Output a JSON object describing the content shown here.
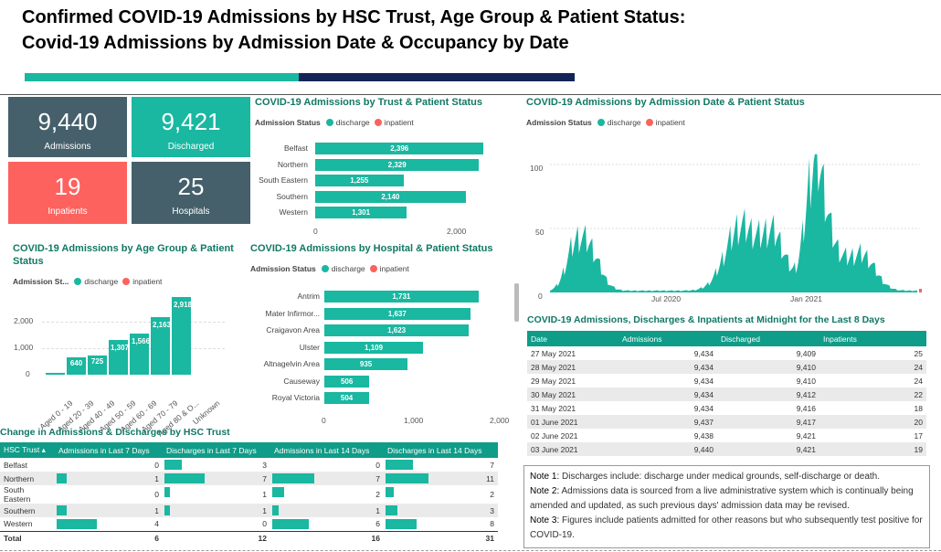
{
  "header": {
    "line1": "Confirmed COVID-19 Admissions by HSC Trust, Age Group & Patient Status:",
    "line2": "Covid-19 Admissions by Admission Date & Occupancy by Date"
  },
  "colors": {
    "teal": "#1ab7a1",
    "dark": "#45606b",
    "red": "#fd625e",
    "navy": "#152456",
    "heading": "#117865"
  },
  "kpis": [
    {
      "value": "9,440",
      "label": "Admissions"
    },
    {
      "value": "9,421",
      "label": "Discharged"
    },
    {
      "value": "19",
      "label": "Inpatients"
    },
    {
      "value": "25",
      "label": "Hospitals"
    }
  ],
  "legend": {
    "title": "Admission Status",
    "title_short": "Admission St...",
    "discharge": "discharge",
    "inpatient": "inpatient"
  },
  "trust_chart": {
    "title": "COVID-19 Admissions by Trust & Patient Status",
    "categories": [
      "Belfast",
      "Northern",
      "South Eastern",
      "Southern",
      "Western"
    ],
    "values": [
      2396,
      2329,
      1255,
      2140,
      1301
    ],
    "labels": [
      "2,396",
      "2,329",
      "1,255",
      "2,140",
      "1,301"
    ],
    "ticks": [
      "0",
      "2,000"
    ]
  },
  "date_chart": {
    "title": "COVID-19 Admissions by Admission Date & Patient Status",
    "y_ticks": [
      "100",
      "50",
      "0"
    ],
    "x_ticks": [
      "Jul 2020",
      "Jan 2021"
    ]
  },
  "age_chart": {
    "title": "COVID-19 Admissions by Age Group & Patient Status",
    "categories": [
      "Aged 0 - 19",
      "Aged 20 - 39",
      "Aged 40 - 49",
      "Aged 50 - 59",
      "Aged 60 - 69",
      "Aged 70 - 79",
      "Aged 80 & O...",
      "Unknown"
    ],
    "values": [
      62,
      640,
      725,
      1307,
      1566,
      2163,
      2918,
      0
    ],
    "labels": [
      "",
      "640",
      "725",
      "1,307",
      "1,566",
      "2,163",
      "2,918",
      ""
    ],
    "y_ticks": [
      "2,000",
      "1,000",
      "0"
    ]
  },
  "hospital_chart": {
    "title": "COVID-19 Admissions by Hospital & Patient Status",
    "categories": [
      "Antrim",
      "Mater Infirmor...",
      "Craigavon Area",
      "Ulster",
      "Altnagelvin Area",
      "Causeway",
      "Royal Victoria"
    ],
    "values": [
      1731,
      1637,
      1623,
      1109,
      935,
      506,
      504
    ],
    "labels": [
      "1,731",
      "1,637",
      "1,623",
      "1,109",
      "935",
      "506",
      "504"
    ],
    "ticks": [
      "0",
      "1,000",
      "2,000"
    ]
  },
  "occupancy": {
    "title": "COVID-19 Admissions, Discharges & Inpatients at Midnight for the Last 8 Days",
    "headers": [
      "Date",
      "Admissions",
      "Discharged",
      "Inpatients"
    ],
    "rows": [
      [
        "27 May 2021",
        "9,434",
        "9,409",
        "25"
      ],
      [
        "28 May 2021",
        "9,434",
        "9,410",
        "24"
      ],
      [
        "29 May 2021",
        "9,434",
        "9,410",
        "24"
      ],
      [
        "30 May 2021",
        "9,434",
        "9,412",
        "22"
      ],
      [
        "31 May 2021",
        "9,434",
        "9,416",
        "18"
      ],
      [
        "01 June 2021",
        "9,437",
        "9,417",
        "20"
      ],
      [
        "02 June 2021",
        "9,438",
        "9,421",
        "17"
      ],
      [
        "03 June 2021",
        "9,440",
        "9,421",
        "19"
      ]
    ]
  },
  "change_table": {
    "title": "Change in Admissions & Discharges by HSC Trust",
    "headers": [
      "HSC Trust",
      "Admissions in Last 7 Days",
      "Discharges in Last 7 Days",
      "Admissions in Last 14 Days",
      "Discharges in Last 14 Days"
    ],
    "rows": [
      [
        "Belfast",
        "0",
        "3",
        "0",
        "7"
      ],
      [
        "Northern",
        "1",
        "7",
        "7",
        "11"
      ],
      [
        "South Eastern",
        "0",
        "1",
        "2",
        "2"
      ],
      [
        "Southern",
        "1",
        "1",
        "1",
        "3"
      ],
      [
        "Western",
        "4",
        "0",
        "6",
        "8"
      ]
    ],
    "values": [
      [
        0,
        3,
        0,
        7
      ],
      [
        1,
        7,
        7,
        11
      ],
      [
        0,
        1,
        2,
        2
      ],
      [
        1,
        1,
        1,
        3
      ],
      [
        4,
        0,
        6,
        8
      ]
    ],
    "total": [
      "Total",
      "6",
      "12",
      "16",
      "31"
    ]
  },
  "notes": [
    {
      "label": "Note 1:",
      "text": " Discharges include: discharge under medical grounds, self-discharge or death."
    },
    {
      "label": "Note 2:",
      "text": " Admissions data is sourced from a live administrative system which is continually being amended and updated, as such previous days' admission data may be revised."
    },
    {
      "label": "Note 3:",
      "text": " Figures include patients admitted for other reasons but who subsequently test positive for COVID-19."
    }
  ]
}
